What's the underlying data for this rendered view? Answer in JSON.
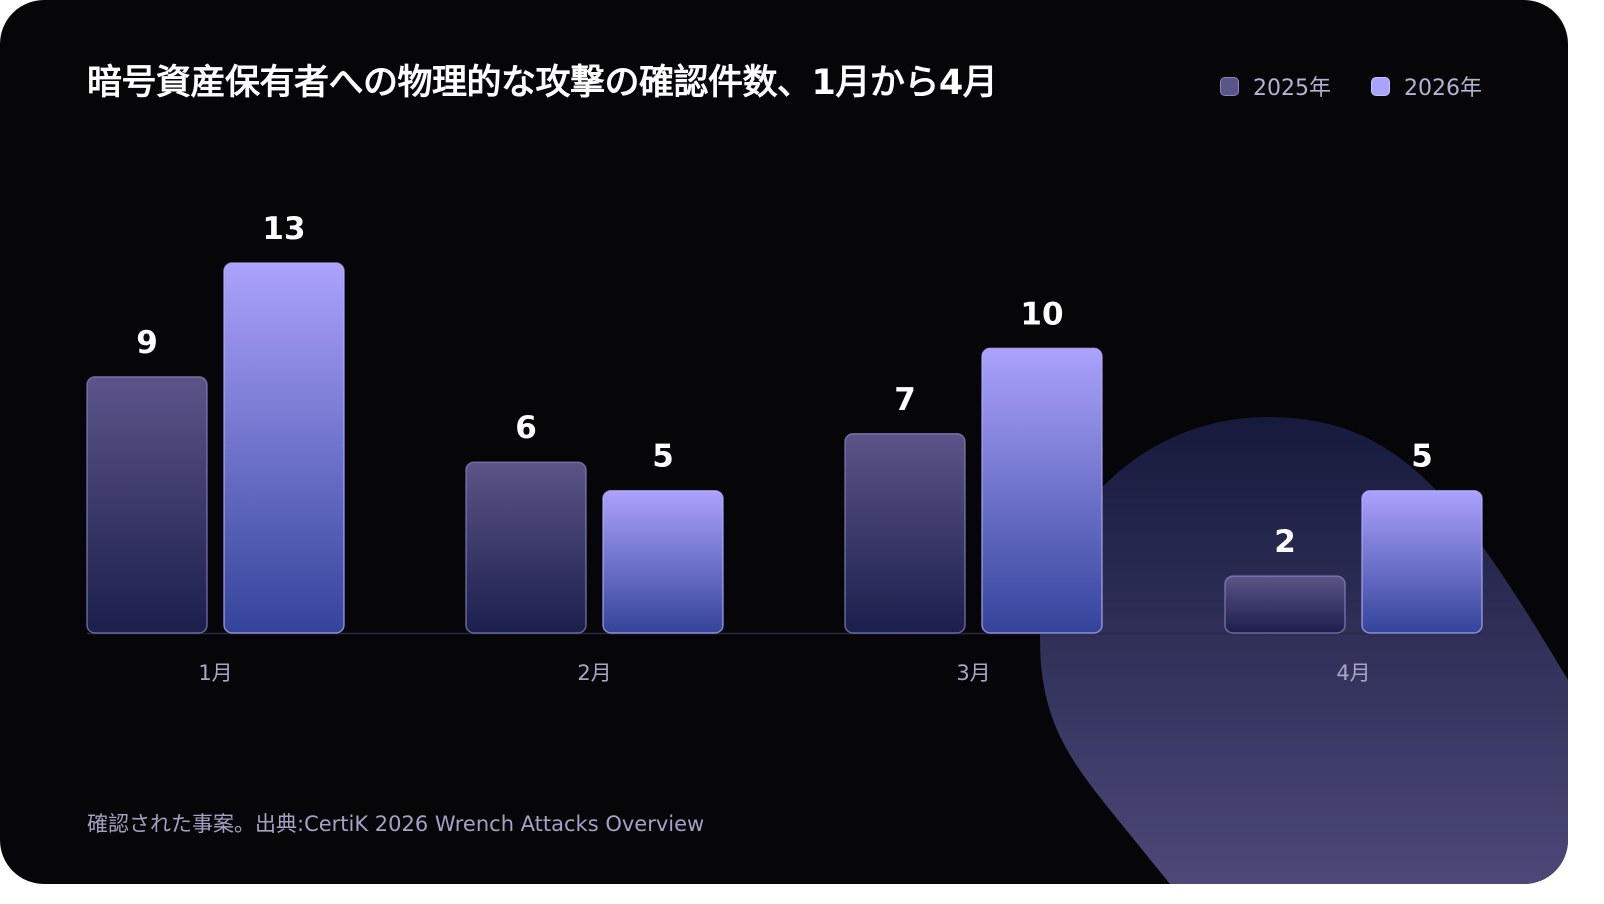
{
  "title": "暗号資産保有者への物理的な攻撃の確認件数、1月から4月",
  "footnote": "確認された事案。出典:CertiK 2026 Wrench Attacks Overview",
  "colors": {
    "background": "#060608",
    "series_2025_top": "#5c5488",
    "series_2025_bottom": "#1b1f4c",
    "series_2026_top": "#aba2fc",
    "series_2026_bottom": "#34449a"
  },
  "chart_data": {
    "type": "bar",
    "title": "暗号資産保有者への物理的な攻撃の確認件数、1月から4月",
    "categories": [
      "1月",
      "2月",
      "3月",
      "4月"
    ],
    "series": [
      {
        "name": "2025年",
        "values": [
          9,
          6,
          7,
          2
        ]
      },
      {
        "name": "2026年",
        "values": [
          13,
          5,
          10,
          5
        ]
      }
    ],
    "ylim": [
      0,
      13
    ],
    "grid": false,
    "legend_position": "top-right",
    "data_labels": true
  }
}
